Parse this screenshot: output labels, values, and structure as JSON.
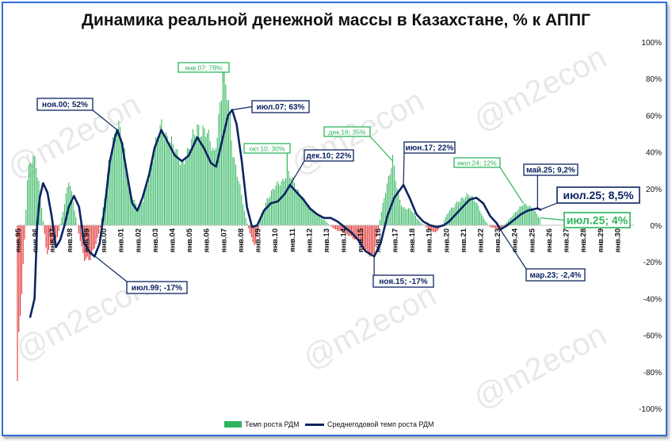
{
  "title": "Динамика реальной денежной массы в Казахстане, % к АППГ",
  "watermark": "@m2econ",
  "colors": {
    "bar_positive": "#2db55d",
    "bar_negative": "#e02020",
    "line": "#0c2461",
    "frame": "#2f6fd6",
    "callout_green": "#2db55d",
    "callout_navy": "#0c2461"
  },
  "legend": [
    {
      "key": "bar",
      "label": "Темп роста РДМ"
    },
    {
      "key": "line",
      "label": "Среднегодовой темп роста РДМ"
    }
  ],
  "chart_data": {
    "type": "bar",
    "title": "Динамика реальной денежной массы в Казахстане, % к АППГ",
    "y_axis_position": "right",
    "ylim": [
      -100,
      100
    ],
    "y_ticks": [
      "100%",
      "80%",
      "60%",
      "40%",
      "20%",
      "0%",
      "-20%",
      "-40%",
      "-60%",
      "-80%",
      "-100%"
    ],
    "x_ticks": [
      "янв.95",
      "янв.96",
      "янв.97",
      "янв.98",
      "янв.99",
      "янв.00",
      "янв.01",
      "янв.02",
      "янв.03",
      "янв.04",
      "янв.05",
      "янв.06",
      "янв.07",
      "янв.08",
      "янв.09",
      "янв.10",
      "янв.11",
      "янв.12",
      "янв.13",
      "янв.14",
      "янв.15",
      "янв.16",
      "янв.17",
      "янв.18",
      "янв.19",
      "янв.20",
      "янв.21",
      "янв.22",
      "янв.23",
      "янв.24",
      "янв.25",
      "янв.26",
      "янв.27",
      "янв.28",
      "янв.29",
      "янв.30"
    ],
    "legend_position": "bottom",
    "grid": false,
    "series": [
      {
        "name": "Темп роста РДМ",
        "kind": "bar",
        "x_start": 1995.0,
        "x_end": 2025.5,
        "anchors": [
          [
            1995.0,
            -85
          ],
          [
            1995.08,
            -65
          ],
          [
            1995.4,
            -12
          ],
          [
            1995.6,
            30
          ],
          [
            1995.9,
            40
          ],
          [
            1996.3,
            20
          ],
          [
            1996.7,
            -15
          ],
          [
            1997.0,
            -10
          ],
          [
            1997.3,
            -8
          ],
          [
            1997.6,
            5
          ],
          [
            1998.0,
            25
          ],
          [
            1998.3,
            10
          ],
          [
            1998.6,
            -5
          ],
          [
            1998.9,
            -18
          ],
          [
            1999.2,
            -20
          ],
          [
            1999.5,
            -12
          ],
          [
            1999.8,
            -3
          ],
          [
            2000.1,
            15
          ],
          [
            2000.5,
            45
          ],
          [
            2000.83,
            55
          ],
          [
            2001.0,
            52
          ],
          [
            2001.3,
            35
          ],
          [
            2001.6,
            18
          ],
          [
            2002.0,
            10
          ],
          [
            2002.3,
            12
          ],
          [
            2002.6,
            25
          ],
          [
            2003.0,
            40
          ],
          [
            2003.4,
            55
          ],
          [
            2003.8,
            48
          ],
          [
            2004.2,
            40
          ],
          [
            2004.6,
            35
          ],
          [
            2005.0,
            40
          ],
          [
            2005.5,
            55
          ],
          [
            2006.0,
            50
          ],
          [
            2006.5,
            40
          ],
          [
            2007.0,
            78
          ],
          [
            2007.3,
            70
          ],
          [
            2007.6,
            40
          ],
          [
            2008.0,
            20
          ],
          [
            2008.3,
            5
          ],
          [
            2008.6,
            -5
          ],
          [
            2008.9,
            -12
          ],
          [
            2009.2,
            5
          ],
          [
            2009.6,
            15
          ],
          [
            2010.0,
            20
          ],
          [
            2010.5,
            25
          ],
          [
            2010.75,
            30
          ],
          [
            2011.0,
            25
          ],
          [
            2011.3,
            20
          ],
          [
            2011.7,
            15
          ],
          [
            2012.0,
            10
          ],
          [
            2012.5,
            6
          ],
          [
            2013.0,
            2
          ],
          [
            2013.5,
            -2
          ],
          [
            2014.0,
            -4
          ],
          [
            2014.5,
            -6
          ],
          [
            2015.0,
            -10
          ],
          [
            2015.5,
            -15
          ],
          [
            2015.83,
            -17
          ],
          [
            2016.2,
            5
          ],
          [
            2016.5,
            20
          ],
          [
            2016.92,
            35
          ],
          [
            2017.2,
            18
          ],
          [
            2017.5,
            10
          ],
          [
            2018.0,
            8
          ],
          [
            2018.5,
            2
          ],
          [
            2019.0,
            -2
          ],
          [
            2019.4,
            -4
          ],
          [
            2019.8,
            0
          ],
          [
            2020.2,
            8
          ],
          [
            2020.6,
            12
          ],
          [
            2021.0,
            14
          ],
          [
            2021.4,
            18
          ],
          [
            2021.8,
            12
          ],
          [
            2022.2,
            4
          ],
          [
            2022.6,
            -1
          ],
          [
            2023.0,
            -2
          ],
          [
            2023.2,
            -2.4
          ],
          [
            2023.6,
            2
          ],
          [
            2024.0,
            6
          ],
          [
            2024.5,
            12
          ],
          [
            2024.9,
            10
          ],
          [
            2025.3,
            7
          ],
          [
            2025.5,
            4
          ]
        ]
      },
      {
        "name": "Среднегодовой темп роста РДМ",
        "kind": "line",
        "points": [
          [
            1995.75,
            -50
          ],
          [
            1996.0,
            -40
          ],
          [
            1996.15,
            0
          ],
          [
            1996.3,
            15
          ],
          [
            1996.5,
            23
          ],
          [
            1996.75,
            18
          ],
          [
            1997.0,
            5
          ],
          [
            1997.25,
            -12
          ],
          [
            1997.5,
            -8
          ],
          [
            1997.75,
            0
          ],
          [
            1998.0,
            10
          ],
          [
            1998.3,
            16
          ],
          [
            1998.6,
            10
          ],
          [
            1998.9,
            -10
          ],
          [
            1999.25,
            -15
          ],
          [
            1999.5,
            -17
          ],
          [
            1999.8,
            -10
          ],
          [
            2000.1,
            10
          ],
          [
            2000.4,
            35
          ],
          [
            2000.7,
            48
          ],
          [
            2000.83,
            52
          ],
          [
            2001.1,
            45
          ],
          [
            2001.4,
            28
          ],
          [
            2001.7,
            12
          ],
          [
            2002.0,
            8
          ],
          [
            2002.3,
            15
          ],
          [
            2002.7,
            28
          ],
          [
            2003.0,
            42
          ],
          [
            2003.4,
            52
          ],
          [
            2003.8,
            45
          ],
          [
            2004.2,
            38
          ],
          [
            2004.6,
            35
          ],
          [
            2005.0,
            38
          ],
          [
            2005.5,
            48
          ],
          [
            2005.9,
            42
          ],
          [
            2006.3,
            34
          ],
          [
            2006.6,
            32
          ],
          [
            2007.0,
            48
          ],
          [
            2007.3,
            60
          ],
          [
            2007.54,
            63
          ],
          [
            2007.8,
            55
          ],
          [
            2008.1,
            35
          ],
          [
            2008.4,
            10
          ],
          [
            2008.7,
            -1
          ],
          [
            2009.0,
            0
          ],
          [
            2009.4,
            8
          ],
          [
            2009.8,
            12
          ],
          [
            2010.2,
            13
          ],
          [
            2010.6,
            17
          ],
          [
            2010.92,
            22
          ],
          [
            2011.3,
            18
          ],
          [
            2011.7,
            14
          ],
          [
            2012.1,
            9
          ],
          [
            2012.5,
            6
          ],
          [
            2012.9,
            4
          ],
          [
            2013.3,
            4
          ],
          [
            2013.7,
            2
          ],
          [
            2014.1,
            -1
          ],
          [
            2014.5,
            -4
          ],
          [
            2014.9,
            -8
          ],
          [
            2015.3,
            -14
          ],
          [
            2015.83,
            -17
          ],
          [
            2016.2,
            -10
          ],
          [
            2016.6,
            5
          ],
          [
            2017.0,
            15
          ],
          [
            2017.54,
            22
          ],
          [
            2017.9,
            15
          ],
          [
            2018.3,
            6
          ],
          [
            2018.7,
            2
          ],
          [
            2019.1,
            0
          ],
          [
            2019.5,
            -1
          ],
          [
            2019.9,
            0
          ],
          [
            2020.2,
            2
          ],
          [
            2020.6,
            6
          ],
          [
            2021.0,
            10
          ],
          [
            2021.4,
            14
          ],
          [
            2021.8,
            15
          ],
          [
            2022.2,
            12
          ],
          [
            2022.6,
            5
          ],
          [
            2023.0,
            1
          ],
          [
            2023.2,
            -2.4
          ],
          [
            2023.6,
            0
          ],
          [
            2024.0,
            3
          ],
          [
            2024.4,
            6
          ],
          [
            2024.8,
            8
          ],
          [
            2025.37,
            9.2
          ],
          [
            2025.54,
            8.5
          ]
        ]
      }
    ],
    "annotations": [
      {
        "text": "янв.07; 78%",
        "style": "green-outline",
        "x": 2007.0,
        "y": 78
      },
      {
        "text": "ноя.00; 52%",
        "style": "navy-outline",
        "x": 2000.83,
        "y": 52
      },
      {
        "text": "июл.07; 63%",
        "style": "navy-outline",
        "x": 2007.54,
        "y": 63
      },
      {
        "text": "окт.10; 30%",
        "style": "green-outline",
        "x": 2010.75,
        "y": 30
      },
      {
        "text": "дек.10; 22%",
        "style": "navy-outline",
        "x": 2010.92,
        "y": 22
      },
      {
        "text": "дек.16; 35%",
        "style": "green-outline",
        "x": 2016.92,
        "y": 35
      },
      {
        "text": "июн.17; 22%",
        "style": "navy-outline",
        "x": 2017.54,
        "y": 22
      },
      {
        "text": "июл.24; 12%",
        "style": "green-outline",
        "x": 2024.54,
        "y": 12
      },
      {
        "text": "май.25; 9,2%",
        "style": "navy-outline",
        "x": 2025.37,
        "y": 9.2
      },
      {
        "text": "июл.25; 8,5%",
        "style": "navy-big",
        "x": 2025.54,
        "y": 8.5
      },
      {
        "text": "июл.25; 4%",
        "style": "green-big",
        "x": 2025.54,
        "y": 4
      },
      {
        "text": "июл.99; -17%",
        "style": "navy-outline",
        "x": 1999.54,
        "y": -17
      },
      {
        "text": "ноя.15; -17%",
        "style": "navy-outline",
        "x": 2015.83,
        "y": -17
      },
      {
        "text": "мар.23; -2,4%",
        "style": "navy-outline",
        "x": 2023.2,
        "y": -2.4
      }
    ]
  }
}
